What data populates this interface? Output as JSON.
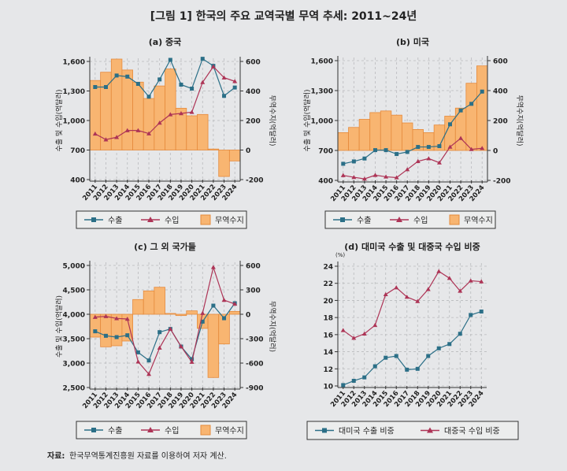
{
  "figure_title": "[그림 1] 한국의 주요 교역국별 무역 추세: 2011~24년",
  "source_label": "자료:",
  "source_text": "한국무역통계진흥원 자료를 이용하여 저자 계산.",
  "colors": {
    "export": "#2b6f87",
    "import": "#ad3456",
    "balance_fill": "#f8b571",
    "balance_stroke": "#e58a3c",
    "background": "#e6e7e9"
  },
  "chart_data": [
    {
      "type": "bar+line",
      "title": "(a) 중국",
      "ylabel": "수출 및 수입(억달러)",
      "y2label": "무역수지(억달러)",
      "ylim": [
        400,
        1600
      ],
      "yticks": [
        "400",
        "700",
        "1,000",
        "1,300",
        "1,600"
      ],
      "y2lim": [
        -200,
        600
      ],
      "y2ticks": [
        "-200",
        "0",
        "200",
        "400",
        "600"
      ],
      "grid": true,
      "categories": [
        "2011",
        "2012",
        "2013",
        "2014",
        "2015",
        "2016",
        "2017",
        "2018",
        "2019",
        "2020",
        "2021",
        "2022",
        "2023",
        "2024"
      ],
      "series": [
        {
          "name": "수출",
          "kind": "line",
          "marker": "square",
          "values": [
            1340,
            1340,
            1457,
            1446,
            1372,
            1242,
            1417,
            1616,
            1364,
            1324,
            1627,
            1555,
            1250,
            1335
          ]
        },
        {
          "name": "수입",
          "kind": "line",
          "marker": "triangle",
          "values": [
            865,
            806,
            830,
            899,
            899,
            867,
            976,
            1061,
            1072,
            1085,
            1388,
            1547,
            1435,
            1398
          ]
        },
        {
          "name": "무역수지",
          "kind": "bar",
          "axis": "right",
          "values": [
            471,
            527,
            616,
            542,
            460,
            349,
            434,
            549,
            283,
            232,
            241,
            7,
            -179,
            -74
          ]
        }
      ],
      "legend": "bottom"
    },
    {
      "type": "bar+line",
      "title": "(b) 미국",
      "ylabel": "수출 및 수입(억달러)",
      "y2label": "무역수지(억달러)",
      "ylim": [
        400,
        1600
      ],
      "yticks": [
        "400",
        "700",
        "1,000",
        "1,300",
        "1,600"
      ],
      "y2lim": [
        -200,
        600
      ],
      "y2ticks": [
        "-200",
        "0",
        "200",
        "400",
        "600"
      ],
      "grid": true,
      "categories": [
        "2011",
        "2012",
        "2013",
        "2014",
        "2015",
        "2016",
        "2017",
        "2018",
        "2019",
        "2020",
        "2021",
        "2022",
        "2023",
        "2024"
      ],
      "series": [
        {
          "name": "수출",
          "kind": "line",
          "marker": "square",
          "values": [
            566,
            590,
            619,
            703,
            703,
            664,
            685,
            735,
            735,
            743,
            962,
            1101,
            1167,
            1290
          ]
        },
        {
          "name": "수입",
          "kind": "line",
          "marker": "triangle",
          "values": [
            450,
            431,
            415,
            452,
            436,
            428,
            509,
            591,
            619,
            577,
            735,
            822,
            711,
            722
          ]
        },
        {
          "name": "무역수지",
          "kind": "bar",
          "axis": "right",
          "values": [
            119,
            154,
            208,
            253,
            264,
            236,
            184,
            140,
            119,
            170,
            229,
            283,
            449,
            565
          ]
        }
      ],
      "legend": "bottom"
    },
    {
      "type": "bar+line",
      "title": "(c) 그 외 국가들",
      "ylabel": "수출 및 수입(억달러)",
      "y2label": "무역수지(억달러)",
      "ylim": [
        2500,
        5000
      ],
      "yticks": [
        "2,500",
        "3,000",
        "3,500",
        "4,000",
        "4,500",
        "5,000"
      ],
      "y2lim": [
        -900,
        600
      ],
      "y2ticks": [
        "-900",
        "-600",
        "-300",
        "0",
        "300",
        "600"
      ],
      "grid": true,
      "categories": [
        "2011",
        "2012",
        "2013",
        "2014",
        "2015",
        "2016",
        "2017",
        "2018",
        "2019",
        "2020",
        "2021",
        "2022",
        "2023",
        "2024"
      ],
      "series": [
        {
          "name": "수출",
          "kind": "line",
          "marker": "square",
          "values": [
            3651,
            3559,
            3532,
            3570,
            3220,
            3054,
            3634,
            3699,
            3339,
            3081,
            3849,
            4177,
            3919,
            4226
          ]
        },
        {
          "name": "수입",
          "kind": "line",
          "marker": "triangle",
          "values": [
            3941,
            3957,
            3914,
            3903,
            3027,
            2774,
            3312,
            3699,
            3339,
            3022,
            4022,
            4962,
            4290,
            4210
          ]
        },
        {
          "name": "무역수지",
          "kind": "bar",
          "axis": "right",
          "values": [
            -281,
            -400,
            -387,
            -329,
            181,
            287,
            332,
            10,
            -16,
            42,
            -174,
            -777,
            -365,
            35
          ]
        }
      ],
      "legend": "bottom"
    },
    {
      "type": "line",
      "title": "(d) 대미국 수출 및 대중국 수입 비중",
      "yunit": "(%)",
      "ylim": [
        10,
        24
      ],
      "yticks": [
        "10",
        "12",
        "14",
        "16",
        "18",
        "20",
        "22",
        "24"
      ],
      "grid": true,
      "categories": [
        "2011",
        "2012",
        "2013",
        "2014",
        "2015",
        "2016",
        "2017",
        "2018",
        "2019",
        "2020",
        "2021",
        "2022",
        "2023",
        "2024"
      ],
      "series": [
        {
          "name": "대미국 수출 비중",
          "kind": "line",
          "marker": "square",
          "values": [
            10.1,
            10.6,
            11.0,
            12.3,
            13.3,
            13.5,
            11.9,
            12.0,
            13.5,
            14.4,
            14.9,
            16.1,
            18.3,
            18.7
          ]
        },
        {
          "name": "대중국 수입 비중",
          "kind": "line",
          "marker": "triangle",
          "values": [
            16.5,
            15.6,
            16.1,
            17.1,
            20.7,
            21.5,
            20.4,
            19.9,
            21.3,
            23.4,
            22.6,
            21.1,
            22.3,
            22.2
          ]
        }
      ],
      "legend": "bottom"
    }
  ]
}
